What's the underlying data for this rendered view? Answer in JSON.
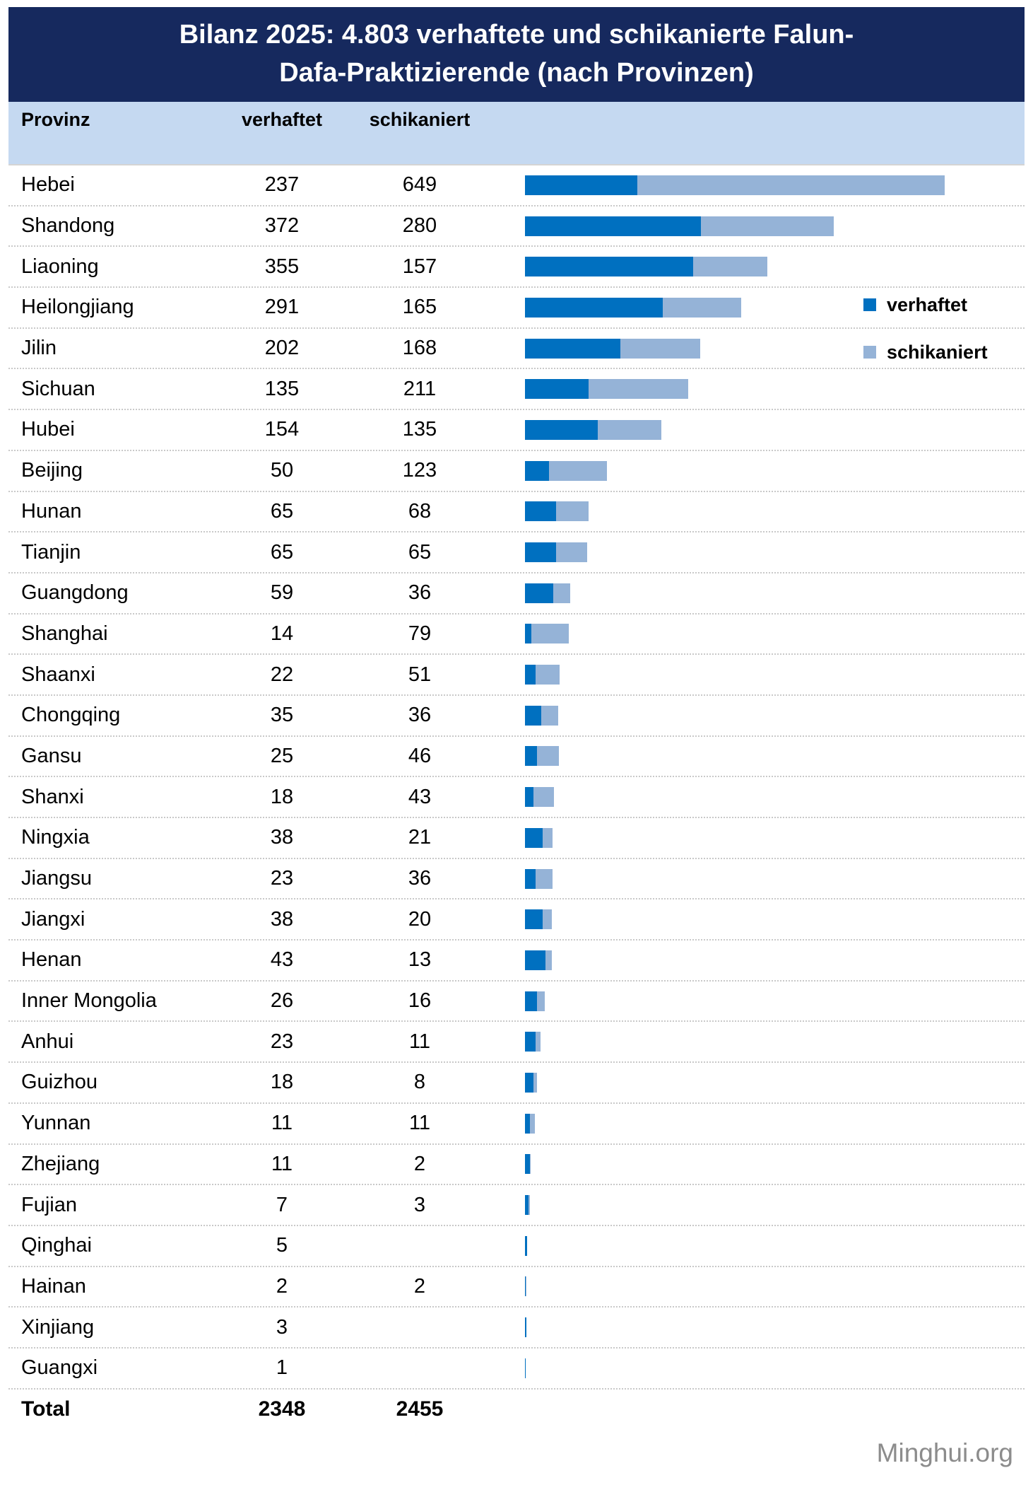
{
  "title": {
    "line1": "Bilanz 2025: 4.803 verhaftete und schikanierte Falun-",
    "line2": "Dafa-Praktizierende (nach Provinzen)"
  },
  "columns": {
    "province": "Provinz",
    "arrested": "verhaftet",
    "harassed": "schikaniert"
  },
  "legend": [
    {
      "label": "verhaftet",
      "color": "#0070c0"
    },
    {
      "label": "schikaniert",
      "color": "#95b3d7"
    }
  ],
  "total": {
    "label": "Total",
    "arrested": "2348",
    "harassed": "2455"
  },
  "footer": {
    "source": "Minghui.org"
  },
  "colors": {
    "title_bg": "#16295e",
    "title_text": "#ffffff",
    "header_bg": "#c5d9f1",
    "bar_arrested": "#0070c0",
    "bar_harassed": "#95b3d7",
    "footer_text": "#8c8c8c"
  },
  "chart_data": {
    "type": "bar",
    "orientation": "horizontal",
    "stacked": true,
    "title": "Bilanz 2025: 4.803 verhaftete und schikanierte Falun-Dafa-Praktizierende (nach Provinzen)",
    "legend_position": "right",
    "grid": false,
    "xlim": [
      0,
      886
    ],
    "categories": [
      "Hebei",
      "Shandong",
      "Liaoning",
      "Heilongjiang",
      "Jilin",
      "Sichuan",
      "Hubei",
      "Beijing",
      "Hunan",
      "Tianjin",
      "Guangdong",
      "Shanghai",
      "Shaanxi",
      "Chongqing",
      "Gansu",
      "Shanxi",
      "Ningxia",
      "Jiangsu",
      "Jiangxi",
      "Henan",
      "Inner Mongolia",
      "Anhui",
      "Guizhou",
      "Yunnan",
      "Zhejiang",
      "Fujian",
      "Qinghai",
      "Hainan",
      "Xinjiang",
      "Guangxi"
    ],
    "series": [
      {
        "name": "verhaftet",
        "color": "#0070c0",
        "values": [
          237,
          372,
          355,
          291,
          202,
          135,
          154,
          50,
          65,
          65,
          59,
          14,
          22,
          35,
          25,
          18,
          38,
          23,
          38,
          43,
          26,
          23,
          18,
          11,
          11,
          7,
          5,
          2,
          3,
          1
        ]
      },
      {
        "name": "schikaniert",
        "color": "#95b3d7",
        "values": [
          649,
          280,
          157,
          165,
          168,
          211,
          135,
          123,
          68,
          65,
          36,
          79,
          51,
          36,
          46,
          43,
          21,
          36,
          20,
          13,
          16,
          11,
          8,
          11,
          2,
          3,
          null,
          2,
          null,
          null
        ]
      }
    ],
    "totals": {
      "verhaftet": 2348,
      "schikaniert": 2455
    }
  }
}
